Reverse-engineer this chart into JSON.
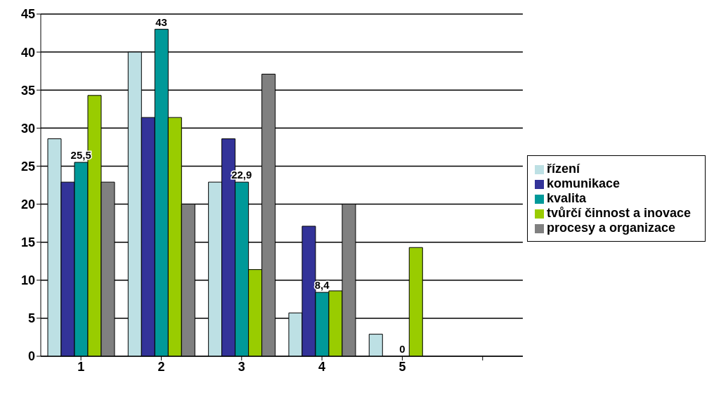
{
  "chart_data": {
    "type": "bar",
    "categories": [
      "1",
      "2",
      "3",
      "4",
      "5",
      null
    ],
    "series": [
      {
        "name": "řízení",
        "color": "#bde0e4",
        "values": [
          28.6,
          40,
          22.9,
          5.7,
          2.9,
          null
        ]
      },
      {
        "name": "komunikace",
        "color": "#333399",
        "values": [
          22.9,
          31.4,
          28.6,
          17.1,
          0,
          null
        ]
      },
      {
        "name": "kvalita",
        "color": "#009999",
        "values": [
          25.5,
          43,
          22.9,
          8.4,
          0,
          null
        ],
        "value_labels": [
          "25,5",
          "43",
          "22,9",
          "8,4",
          "0",
          null
        ]
      },
      {
        "name": "tvůrčí činnost a inovace",
        "color": "#99cc00",
        "values": [
          34.3,
          31.4,
          11.4,
          8.6,
          14.3,
          null
        ]
      },
      {
        "name": "procesy a organizace",
        "color": "#808080",
        "values": [
          22.9,
          20,
          37.1,
          20,
          0,
          null
        ]
      }
    ],
    "ylim": [
      0,
      45
    ],
    "yticks": [
      0,
      5,
      10,
      15,
      20,
      25,
      30,
      35,
      40,
      45
    ],
    "grid": "y",
    "legend": "right"
  }
}
